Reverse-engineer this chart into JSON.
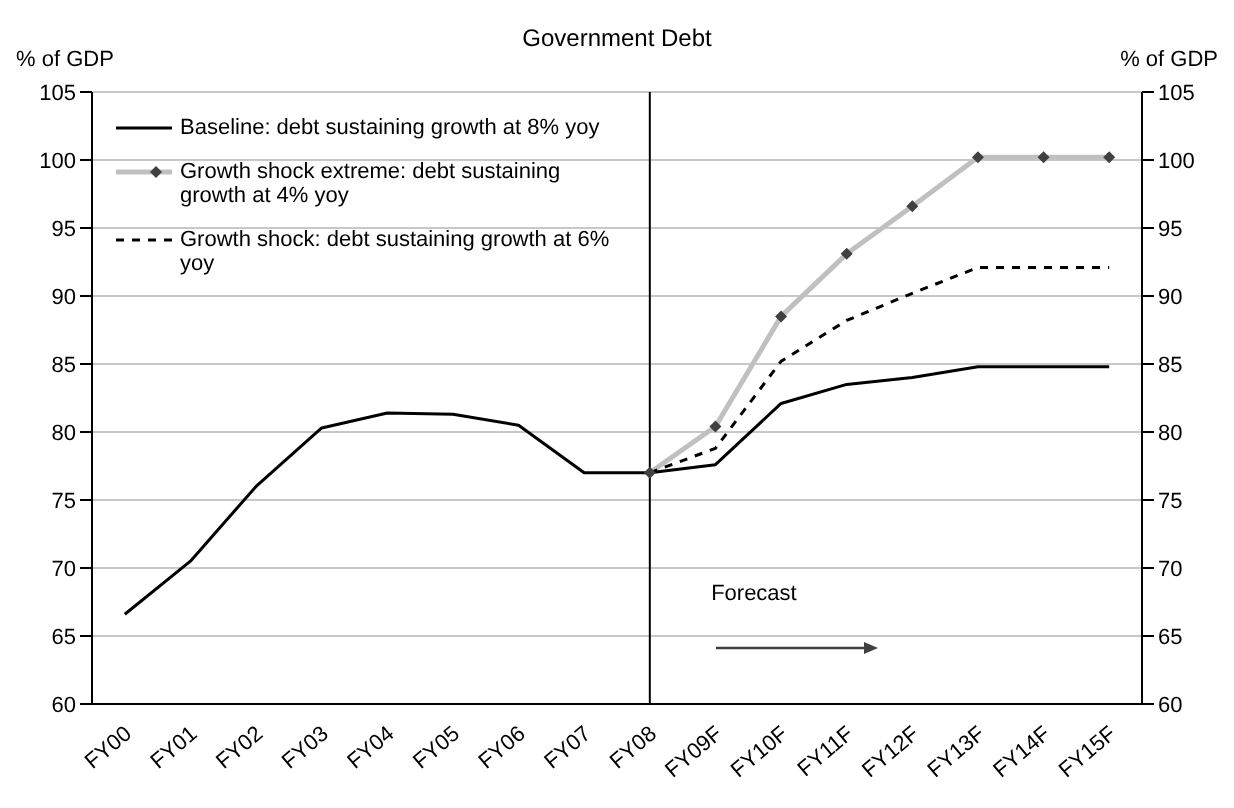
{
  "chart_data": {
    "type": "line",
    "title": "Government Debt",
    "ylabel": "% of GDP",
    "y2label": "% of GDP",
    "categories": [
      "FY00",
      "FY01",
      "FY02",
      "FY03",
      "FY04",
      "FY05",
      "FY06",
      "FY07",
      "FY08",
      "FY09F",
      "FY10F",
      "FY11F",
      "FY12F",
      "FY13F",
      "FY14F",
      "FY15F"
    ],
    "series": [
      {
        "name": "Baseline: debt sustaining growth at 8% yoy",
        "color": "#000000",
        "line_style": "solid",
        "marker": "none",
        "values": [
          66.6,
          70.5,
          76,
          80.3,
          81.4,
          81.3,
          80.5,
          77,
          77,
          77.6,
          82.1,
          83.5,
          84,
          84.8,
          84.8,
          84.8
        ]
      },
      {
        "name": "Growth shock extreme: debt sustaining growth at 4% yoy",
        "color": "#c0c0c0",
        "line_style": "solid",
        "marker": "diamond",
        "values": [
          null,
          null,
          null,
          null,
          null,
          null,
          null,
          null,
          77,
          80.4,
          88.5,
          93.1,
          96.6,
          100.2,
          100.2,
          100.2
        ]
      },
      {
        "name": "Growth shock: debt sustaining growth at 6% yoy",
        "color": "#000000",
        "line_style": "dashed",
        "marker": "none",
        "values": [
          null,
          null,
          null,
          null,
          null,
          null,
          null,
          null,
          77,
          78.8,
          85.2,
          88.2,
          90.2,
          92.1,
          92.1,
          92.1
        ]
      }
    ],
    "ylim": [
      60,
      105
    ],
    "yticks": [
      60,
      65,
      70,
      75,
      80,
      85,
      90,
      95,
      100,
      105
    ],
    "y2lim": [
      60,
      105
    ],
    "y2ticks": [
      60,
      65,
      70,
      75,
      80,
      85,
      90,
      95,
      100,
      105
    ],
    "grid": "y",
    "legend": "top left",
    "ref_lines": [
      {
        "axis": "x",
        "value": "FY08",
        "color": "#000000"
      }
    ],
    "annotations": [
      "Forecast"
    ]
  }
}
